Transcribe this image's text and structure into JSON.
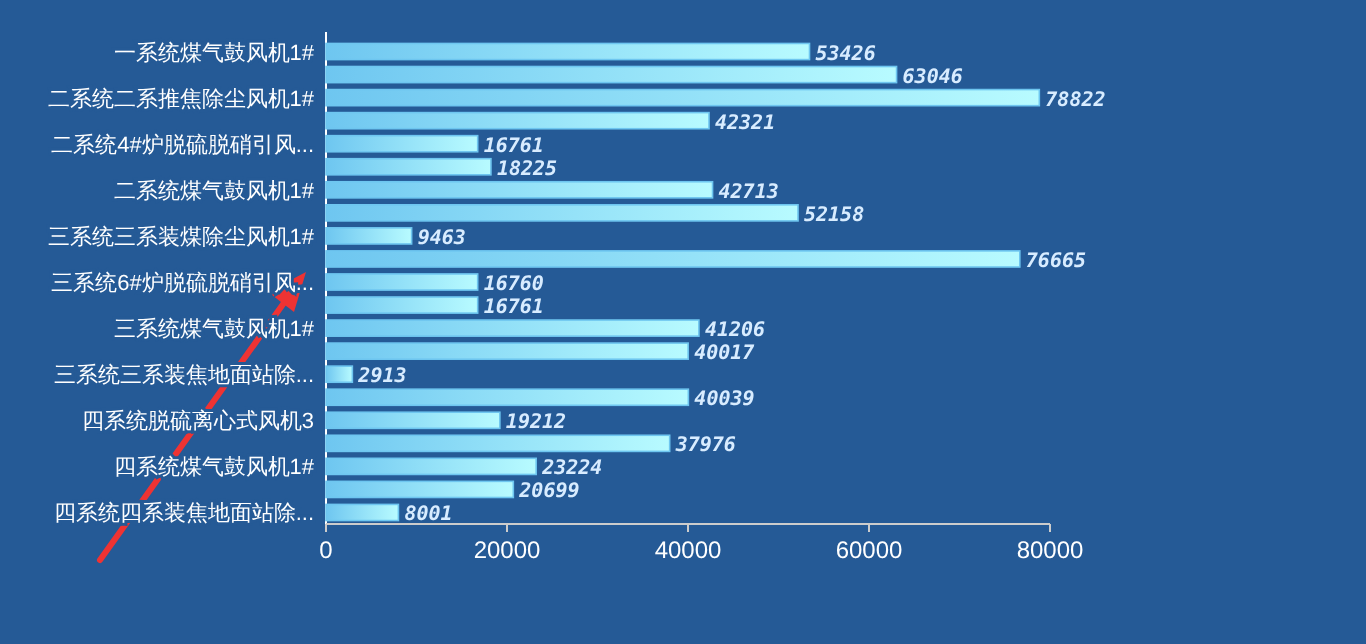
{
  "chart_data": {
    "type": "bar",
    "orientation": "horizontal",
    "categories": [
      "一系统煤气鼓风机1#",
      null,
      "二系统二系推焦除尘风机1#",
      null,
      "二系统4#炉脱硫脱硝引风...",
      null,
      "二系统煤气鼓风机1#",
      null,
      "三系统三系装煤除尘风机1#",
      null,
      "三系统6#炉脱硫脱硝引风...",
      null,
      "三系统煤气鼓风机1#",
      null,
      "三系统三系装焦地面站除...",
      null,
      "四系统脱硫离心式风机3",
      null,
      "四系统煤气鼓风机1#",
      null,
      "四系统四系装焦地面站除..."
    ],
    "values": [
      53426,
      63046,
      78822,
      42321,
      16761,
      18225,
      42713,
      52158,
      9463,
      76665,
      16760,
      16761,
      41206,
      40017,
      2913,
      40039,
      19212,
      37976,
      23224,
      20699,
      8001
    ],
    "color": "#6ec6f0",
    "data_labels": true,
    "xlim": [
      0,
      80000
    ],
    "xticks": [
      0,
      20000,
      40000,
      60000,
      80000
    ],
    "grid": false
  }
}
